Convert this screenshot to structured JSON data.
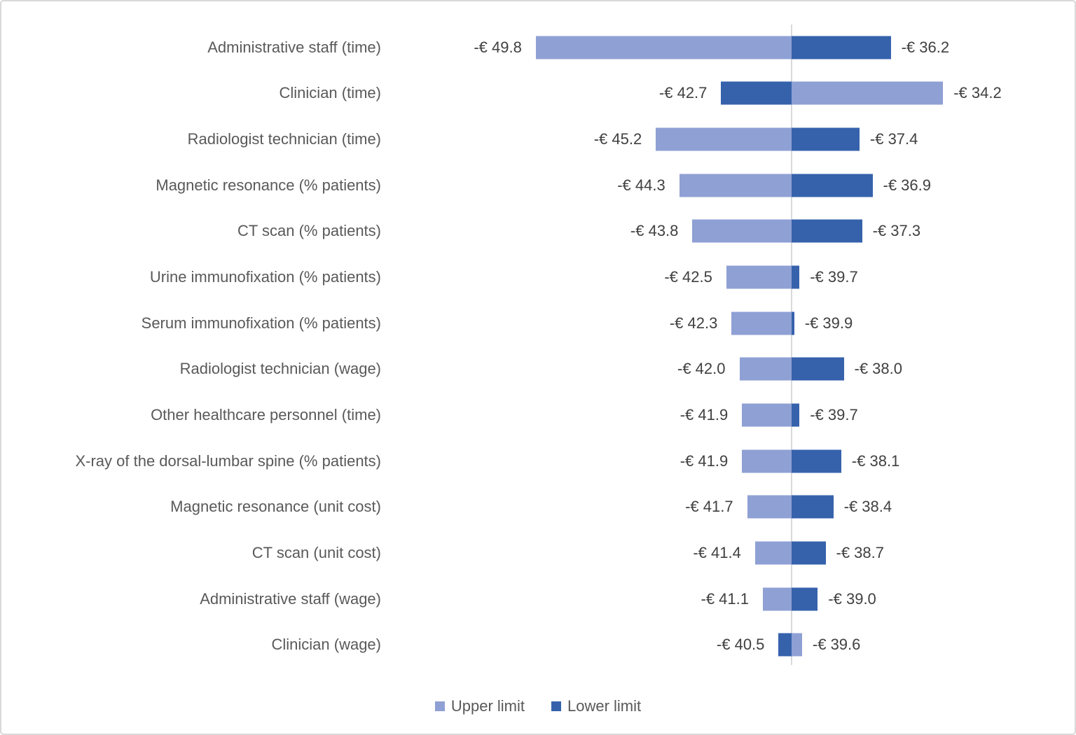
{
  "chart_data": {
    "type": "bar",
    "subtype": "tornado",
    "orientation": "horizontal",
    "title": "",
    "xlabel": "",
    "ylabel": "",
    "unit": "EUR",
    "base_value": -40.0,
    "grid": "off",
    "legend_position": "bottom-center",
    "categories": [
      "Administrative staff (time)",
      "Clinician (time)",
      "Radiologist technician (time)",
      "Magnetic resonance (% patients)",
      "CT scan (% patients)",
      "Urine immunofixation (% patients)",
      "Serum immunofixation (% patients)",
      "Radiologist technician (wage)",
      "Other healthcare personnel (time)",
      "X-ray of the dorsal-lumbar spine (% patients)",
      "Magnetic resonance (unit cost)",
      "CT scan (unit cost)",
      "Administrative staff (wage)",
      "Clinician (wage)"
    ],
    "series": [
      {
        "key": "upper",
        "name": "Upper limit",
        "color": "#8FA0D4",
        "values": [
          -49.8,
          -34.2,
          -45.2,
          -44.3,
          -43.8,
          -42.5,
          -42.3,
          -42.0,
          -41.9,
          -41.9,
          -41.7,
          -41.4,
          -41.1,
          -39.6
        ]
      },
      {
        "key": "lower",
        "name": "Lower limit",
        "color": "#3662AC",
        "values": [
          -36.2,
          -42.7,
          -37.4,
          -36.9,
          -37.3,
          -39.7,
          -39.9,
          -38.0,
          -39.7,
          -38.1,
          -38.4,
          -38.7,
          -39.0,
          -40.5
        ]
      }
    ],
    "rows": [
      {
        "category": "Administrative staff (time)",
        "left": {
          "series": "upper",
          "value": -49.8,
          "label": "-€ 49.8"
        },
        "right": {
          "series": "lower",
          "value": -36.2,
          "label": "-€ 36.2"
        }
      },
      {
        "category": "Clinician (time)",
        "left": {
          "series": "lower",
          "value": -42.7,
          "label": "-€ 42.7"
        },
        "right": {
          "series": "upper",
          "value": -34.2,
          "label": "-€ 34.2"
        }
      },
      {
        "category": "Radiologist technician (time)",
        "left": {
          "series": "upper",
          "value": -45.2,
          "label": "-€ 45.2"
        },
        "right": {
          "series": "lower",
          "value": -37.4,
          "label": "-€ 37.4"
        }
      },
      {
        "category": "Magnetic resonance (% patients)",
        "left": {
          "series": "upper",
          "value": -44.3,
          "label": "-€ 44.3"
        },
        "right": {
          "series": "lower",
          "value": -36.9,
          "label": "-€ 36.9"
        }
      },
      {
        "category": "CT scan (% patients)",
        "left": {
          "series": "upper",
          "value": -43.8,
          "label": "-€ 43.8"
        },
        "right": {
          "series": "lower",
          "value": -37.3,
          "label": "-€ 37.3"
        }
      },
      {
        "category": "Urine immunofixation (% patients)",
        "left": {
          "series": "upper",
          "value": -42.5,
          "label": "-€ 42.5"
        },
        "right": {
          "series": "lower",
          "value": -39.7,
          "label": "-€ 39.7"
        }
      },
      {
        "category": "Serum immunofixation (% patients)",
        "left": {
          "series": "upper",
          "value": -42.3,
          "label": "-€ 42.3"
        },
        "right": {
          "series": "lower",
          "value": -39.9,
          "label": "-€ 39.9"
        }
      },
      {
        "category": "Radiologist technician (wage)",
        "left": {
          "series": "upper",
          "value": -42.0,
          "label": "-€ 42.0"
        },
        "right": {
          "series": "lower",
          "value": -38.0,
          "label": "-€ 38.0"
        }
      },
      {
        "category": "Other healthcare personnel (time)",
        "left": {
          "series": "upper",
          "value": -41.9,
          "label": "-€ 41.9"
        },
        "right": {
          "series": "lower",
          "value": -39.7,
          "label": "-€ 39.7"
        }
      },
      {
        "category": "X-ray of the dorsal-lumbar spine (% patients)",
        "left": {
          "series": "upper",
          "value": -41.9,
          "label": "-€ 41.9"
        },
        "right": {
          "series": "lower",
          "value": -38.1,
          "label": "-€ 38.1"
        }
      },
      {
        "category": "Magnetic resonance (unit cost)",
        "left": {
          "series": "upper",
          "value": -41.7,
          "label": "-€ 41.7"
        },
        "right": {
          "series": "lower",
          "value": -38.4,
          "label": "-€ 38.4"
        }
      },
      {
        "category": "CT scan (unit cost)",
        "left": {
          "series": "upper",
          "value": -41.4,
          "label": "-€ 41.4"
        },
        "right": {
          "series": "lower",
          "value": -38.7,
          "label": "-€ 38.7"
        }
      },
      {
        "category": "Administrative staff (wage)",
        "left": {
          "series": "upper",
          "value": -41.1,
          "label": "-€ 41.1"
        },
        "right": {
          "series": "lower",
          "value": -39.0,
          "label": "-€ 39.0"
        }
      },
      {
        "category": "Clinician (wage)",
        "left": {
          "series": "lower",
          "value": -40.5,
          "label": "-€ 40.5"
        },
        "right": {
          "series": "upper",
          "value": -39.6,
          "label": "-€ 39.6"
        }
      }
    ]
  },
  "legend": {
    "items": [
      {
        "label": "Upper limit",
        "color": "#8FA0D4"
      },
      {
        "label": "Lower limit",
        "color": "#3662AC"
      }
    ]
  },
  "colors": {
    "upper_limit": "#8FA0D4",
    "lower_limit": "#3662AC",
    "axis_line": "#D9D9D9",
    "category_text": "#595959",
    "value_text": "#404040",
    "background": "#FFFFFF",
    "frame_border": "#D9D9D9"
  }
}
